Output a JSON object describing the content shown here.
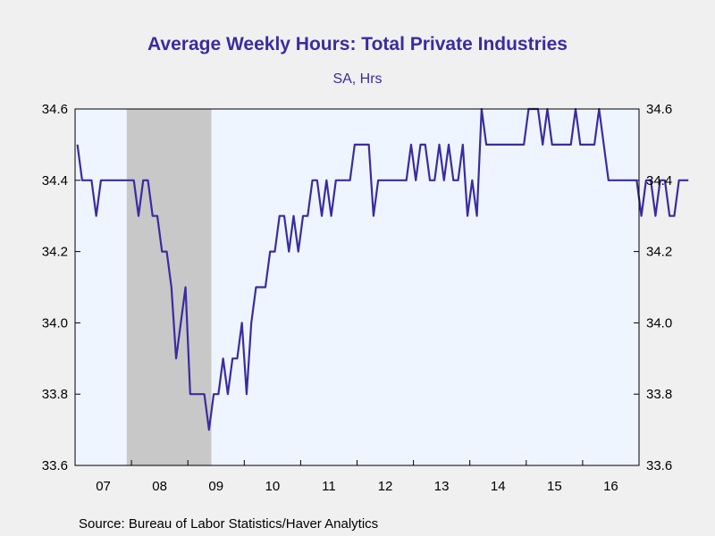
{
  "chart_data": {
    "type": "line",
    "title": "Average Weekly Hours: Total Private Industries",
    "subtitle": "SA, Hrs",
    "source": "Source:  Bureau of Labor Statistics/Haver Analytics",
    "ylim": [
      33.6,
      34.6
    ],
    "y_ticks": [
      "34.6",
      "34.4",
      "34.2",
      "34.0",
      "33.8",
      "33.6"
    ],
    "x_ticks": [
      "07",
      "08",
      "09",
      "10",
      "11",
      "12",
      "13",
      "14",
      "15",
      "16"
    ],
    "recession": {
      "start": "2007-12",
      "end": "2009-06"
    },
    "colors": {
      "line": "#3a2ca0",
      "plot_bg": "#eef5ff",
      "recession": "#c8c8c8",
      "title": "#3a2ca0"
    },
    "series": [
      {
        "start": "2007-01",
        "frequency": "monthly",
        "values": [
          34.5,
          34.4,
          34.4,
          34.4,
          34.3,
          34.4,
          34.4,
          34.4,
          34.4,
          34.4,
          34.4,
          34.4,
          34.4,
          34.3,
          34.4,
          34.4,
          34.3,
          34.3,
          34.2,
          34.2,
          34.1,
          33.9,
          34.0,
          34.1,
          33.8,
          33.8,
          33.8,
          33.8,
          33.7,
          33.8,
          33.8,
          33.9,
          33.8,
          33.9,
          33.9,
          34.0,
          33.8,
          34.0,
          34.1,
          34.1,
          34.1,
          34.2,
          34.2,
          34.3,
          34.3,
          34.2,
          34.3,
          34.2,
          34.3,
          34.3,
          34.4,
          34.4,
          34.3,
          34.4,
          34.3,
          34.4,
          34.4,
          34.4,
          34.4,
          34.5,
          34.5,
          34.5,
          34.5,
          34.3,
          34.4,
          34.4,
          34.4,
          34.4,
          34.4,
          34.4,
          34.4,
          34.5,
          34.4,
          34.5,
          34.5,
          34.4,
          34.4,
          34.5,
          34.4,
          34.5,
          34.4,
          34.4,
          34.5,
          34.3,
          34.4,
          34.3,
          34.6,
          34.5,
          34.5,
          34.5,
          34.5,
          34.5,
          34.5,
          34.5,
          34.5,
          34.5,
          34.6,
          34.6,
          34.6,
          34.5,
          34.6,
          34.5,
          34.5,
          34.5,
          34.5,
          34.5,
          34.6,
          34.5,
          34.5,
          34.5,
          34.5,
          34.6,
          34.5,
          34.4,
          34.4,
          34.4,
          34.4,
          34.4,
          34.4,
          34.4,
          34.3,
          34.4,
          34.4,
          34.3,
          34.4,
          34.4,
          34.3,
          34.3,
          34.4,
          34.4,
          34.4
        ]
      }
    ]
  }
}
